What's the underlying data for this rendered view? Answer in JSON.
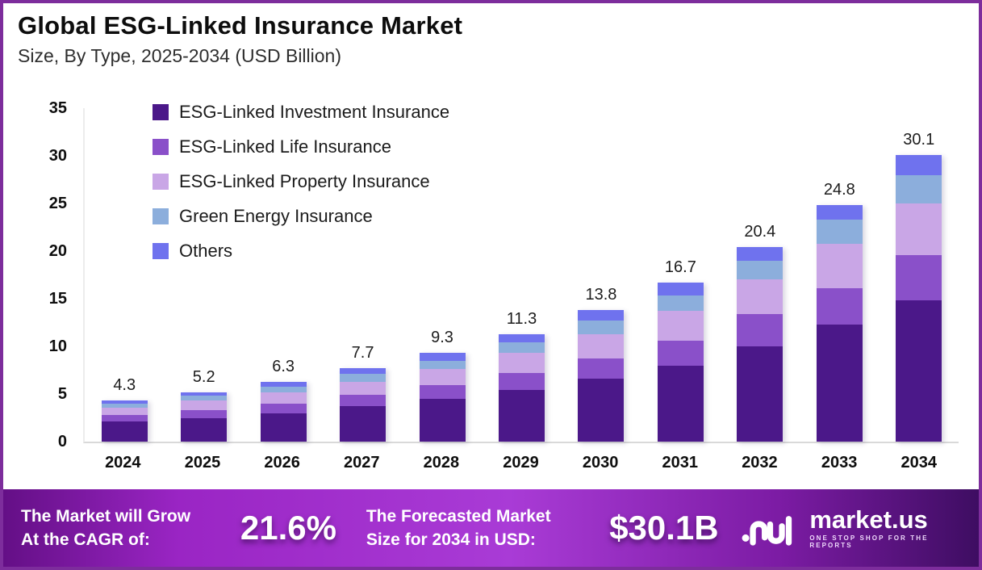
{
  "header": {
    "title": "Global ESG-Linked Insurance Market",
    "subtitle": "Size, By Type, 2025-2034 (USD Billion)"
  },
  "chart_data": {
    "type": "bar",
    "stacked": true,
    "title": "Global ESG-Linked Insurance Market",
    "subtitle": "Size, By Type, 2025-2034 (USD Billion)",
    "unit": "USD Billion",
    "categories": [
      "2024",
      "2025",
      "2026",
      "2027",
      "2028",
      "2029",
      "2030",
      "2031",
      "2032",
      "2033",
      "2034"
    ],
    "series": [
      {
        "name": "ESG-Linked Investment Insurance",
        "key": "esg-linked-investment-insurance",
        "color": "#4B1889",
        "values": [
          2.1,
          2.5,
          3.0,
          3.7,
          4.5,
          5.4,
          6.6,
          8.0,
          10.0,
          12.3,
          14.8
        ]
      },
      {
        "name": "ESG-Linked Life Insurance",
        "key": "esg-linked-life-insurance",
        "color": "#8A50C9",
        "values": [
          0.7,
          0.8,
          1.0,
          1.2,
          1.4,
          1.8,
          2.1,
          2.6,
          3.4,
          3.8,
          4.8
        ]
      },
      {
        "name": "ESG-Linked Property Insurance",
        "key": "esg-linked-property-insurance",
        "color": "#C9A6E6",
        "values": [
          0.8,
          1.0,
          1.2,
          1.4,
          1.7,
          2.1,
          2.6,
          3.1,
          3.6,
          4.7,
          5.4
        ]
      },
      {
        "name": "Green Energy Insurance",
        "key": "green-energy-insurance",
        "color": "#8CAEDC",
        "values": [
          0.4,
          0.5,
          0.6,
          0.8,
          0.9,
          1.1,
          1.4,
          1.6,
          2.0,
          2.5,
          3.0
        ]
      },
      {
        "name": "Others",
        "key": "others",
        "color": "#6F72EE",
        "values": [
          0.3,
          0.4,
          0.5,
          0.6,
          0.8,
          0.9,
          1.1,
          1.4,
          1.4,
          1.5,
          2.1
        ]
      }
    ],
    "totals": [
      4.3,
      5.2,
      6.3,
      7.7,
      9.3,
      11.3,
      13.8,
      16.7,
      20.4,
      24.8,
      30.1
    ],
    "ylim": [
      0,
      35
    ],
    "yticks": [
      0,
      5,
      10,
      15,
      20,
      25,
      30,
      35
    ],
    "grid": false,
    "legend_position": "upper-left-inside"
  },
  "banner": {
    "cagr_label_line1": "The Market will Grow",
    "cagr_label_line2": "At the CAGR of:",
    "cagr_value": "21.6%",
    "forecast_label_line1": "The Forecasted Market",
    "forecast_label_line2": "Size for 2034 in USD:",
    "forecast_value": "$30.1B",
    "brand": "market.us",
    "brand_tagline": "ONE STOP SHOP FOR THE REPORTS"
  },
  "colors": {
    "frame_border": "#7D2D9C",
    "banner_gradient": [
      "#640F86",
      "#9A25C4",
      "#A93BD6",
      "#7B1BA3",
      "#3E0D62"
    ],
    "axis_baseline": "#D9D9D9"
  }
}
